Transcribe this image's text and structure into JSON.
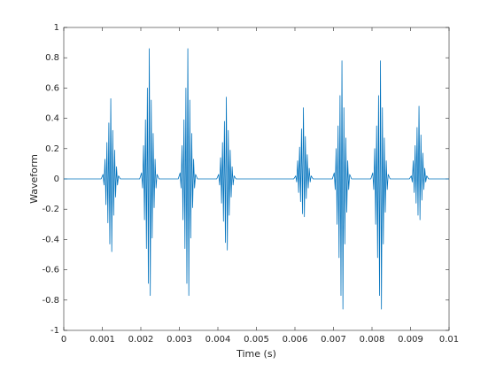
{
  "chart_data": {
    "type": "line",
    "xlabel": "Time (s)",
    "ylabel": "Waveform",
    "xlim": [
      0,
      0.01
    ],
    "ylim": [
      -1,
      1
    ],
    "xticks": [
      0,
      0.001,
      0.002,
      0.003,
      0.004,
      0.005,
      0.006,
      0.007,
      0.008,
      0.009,
      0.01
    ],
    "yticks": [
      -1,
      -0.8,
      -0.6,
      -0.4,
      -0.2,
      0,
      0.2,
      0.4,
      0.6,
      0.8,
      1
    ],
    "grid": false,
    "x": [
      0,
      0.00097,
      0.00102,
      0.001045,
      0.00107,
      0.001095,
      0.00112,
      0.001145,
      0.00117,
      0.001195,
      0.00122,
      0.001245,
      0.00127,
      0.001295,
      0.00132,
      0.001345,
      0.00137,
      0.001395,
      0.00142,
      0.00147,
      0.00197,
      0.00202,
      0.002045,
      0.00207,
      0.002095,
      0.00212,
      0.002145,
      0.00217,
      0.002195,
      0.00222,
      0.002245,
      0.00227,
      0.002295,
      0.00232,
      0.002345,
      0.00237,
      0.002395,
      0.00242,
      0.00247,
      0.00297,
      0.00302,
      0.003045,
      0.00307,
      0.003095,
      0.00312,
      0.003145,
      0.00317,
      0.003195,
      0.00322,
      0.003245,
      0.00327,
      0.003295,
      0.00332,
      0.003345,
      0.00337,
      0.003395,
      0.00342,
      0.00347,
      0.00397,
      0.00402,
      0.004045,
      0.00407,
      0.004095,
      0.00412,
      0.004145,
      0.00417,
      0.004195,
      0.00422,
      0.004245,
      0.00427,
      0.004295,
      0.00432,
      0.004345,
      0.00437,
      0.004395,
      0.00442,
      0.00447,
      0.00597,
      0.00602,
      0.006045,
      0.00607,
      0.006095,
      0.00612,
      0.006145,
      0.00617,
      0.006195,
      0.00622,
      0.006245,
      0.00627,
      0.006295,
      0.00632,
      0.006345,
      0.00637,
      0.006395,
      0.00642,
      0.00647,
      0.00697,
      0.00702,
      0.007045,
      0.00707,
      0.007095,
      0.00712,
      0.007145,
      0.00717,
      0.007195,
      0.00722,
      0.007245,
      0.00727,
      0.007295,
      0.00732,
      0.007345,
      0.00737,
      0.007395,
      0.00742,
      0.00747,
      0.00797,
      0.00802,
      0.008045,
      0.00807,
      0.008095,
      0.00812,
      0.008145,
      0.00817,
      0.008195,
      0.00822,
      0.008245,
      0.00827,
      0.008295,
      0.00832,
      0.008345,
      0.00837,
      0.008395,
      0.00842,
      0.00847,
      0.00897,
      0.00902,
      0.009045,
      0.00907,
      0.009095,
      0.00912,
      0.009145,
      0.00917,
      0.009195,
      0.00922,
      0.009245,
      0.00927,
      0.009295,
      0.00932,
      0.009345,
      0.00937,
      0.009395,
      0.00942,
      0.00947,
      0.01
    ],
    "series": [
      {
        "color": "#0072bd",
        "values": [
          0,
          0,
          0.03,
          -0.04,
          0.13,
          -0.17,
          0.24,
          -0.29,
          0.37,
          -0.43,
          0.53,
          -0.48,
          0.32,
          -0.24,
          0.19,
          -0.12,
          0.08,
          -0.04,
          0.02,
          0,
          0,
          0.04,
          -0.06,
          0.22,
          -0.27,
          0.39,
          -0.46,
          0.6,
          -0.69,
          0.86,
          -0.77,
          0.52,
          -0.39,
          0.3,
          -0.19,
          0.13,
          -0.06,
          0.03,
          0,
          0,
          0.04,
          -0.06,
          0.22,
          -0.27,
          0.39,
          -0.46,
          0.6,
          -0.69,
          0.86,
          -0.77,
          0.52,
          -0.39,
          0.3,
          -0.19,
          0.13,
          -0.06,
          0.03,
          0,
          0,
          0.03,
          -0.04,
          0.14,
          -0.16,
          0.24,
          -0.28,
          0.38,
          -0.42,
          0.54,
          -0.47,
          0.32,
          -0.24,
          0.19,
          -0.12,
          0.08,
          -0.04,
          0.02,
          0,
          0,
          0.02,
          -0.02,
          0.12,
          -0.09,
          0.21,
          -0.15,
          0.33,
          -0.23,
          0.47,
          -0.25,
          0.28,
          -0.13,
          0.16,
          -0.06,
          0.07,
          -0.02,
          0.02,
          0,
          0,
          0.04,
          -0.07,
          0.2,
          -0.3,
          0.35,
          -0.52,
          0.55,
          -0.77,
          0.78,
          -0.86,
          0.47,
          -0.43,
          0.27,
          -0.22,
          0.12,
          -0.07,
          0.03,
          0,
          0,
          0.04,
          -0.07,
          0.2,
          -0.3,
          0.35,
          -0.52,
          0.55,
          -0.77,
          0.78,
          -0.86,
          0.47,
          -0.43,
          0.27,
          -0.22,
          0.12,
          -0.07,
          0.03,
          0,
          0,
          0.02,
          -0.02,
          0.12,
          -0.09,
          0.22,
          -0.16,
          0.34,
          -0.24,
          0.48,
          -0.27,
          0.29,
          -0.14,
          0.17,
          -0.07,
          0.07,
          -0.02,
          0.02,
          0,
          0
        ]
      }
    ]
  }
}
